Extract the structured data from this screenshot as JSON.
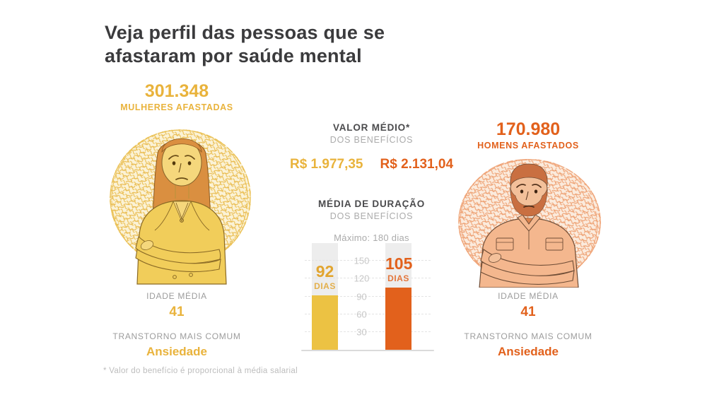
{
  "title_full": "Veja perfil das pessoas que se afastaram por saúde mental",
  "title_lines": [
    "Veja perfil das pessoas que se",
    "afastaram por saúde mental"
  ],
  "women": {
    "count": "301.348",
    "label": "MULHERES AFASTADAS",
    "accent": "#E9B33C",
    "age_label": "IDADE MÉDIA",
    "age": "41",
    "disorder_label": "TRANSTORNO MAIS COMUM",
    "disorder": "Ansiedade",
    "benefit_value": "R$ 1.977,35"
  },
  "men": {
    "count": "170.980",
    "label": "HOMENS AFASTADOS",
    "accent": "#E2611C",
    "age_label": "IDADE MÉDIA",
    "age": "41",
    "disorder_label": "TRANSTORNO MAIS COMUM",
    "disorder": "Ansiedade",
    "benefit_value": "R$ 2.131,04"
  },
  "benefit": {
    "title": "VALOR MÉDIO*",
    "subtitle": "DOS BENEFÍCIOS"
  },
  "chart_data": {
    "type": "bar",
    "title": "MÉDIA DE DURAÇÃO",
    "subtitle": "DOS BENEFÍCIOS",
    "max_note": "Máximo: 180 dias",
    "categories": [
      "Mulheres afastadas",
      "Homens afastados"
    ],
    "values": [
      92,
      105
    ],
    "unit_label": "DIAS",
    "ylim": [
      0,
      180
    ],
    "yticks": [
      30,
      60,
      90,
      120,
      150
    ],
    "bar_colors": [
      "#ECC243",
      "#E2611C"
    ],
    "label_colors": [
      "#E2A52F",
      "#E2611C"
    ],
    "track_color": "#EDEDED",
    "grid": true,
    "legend": "none"
  },
  "footnote": "* Valor do benefício é proporcional à média salarial"
}
